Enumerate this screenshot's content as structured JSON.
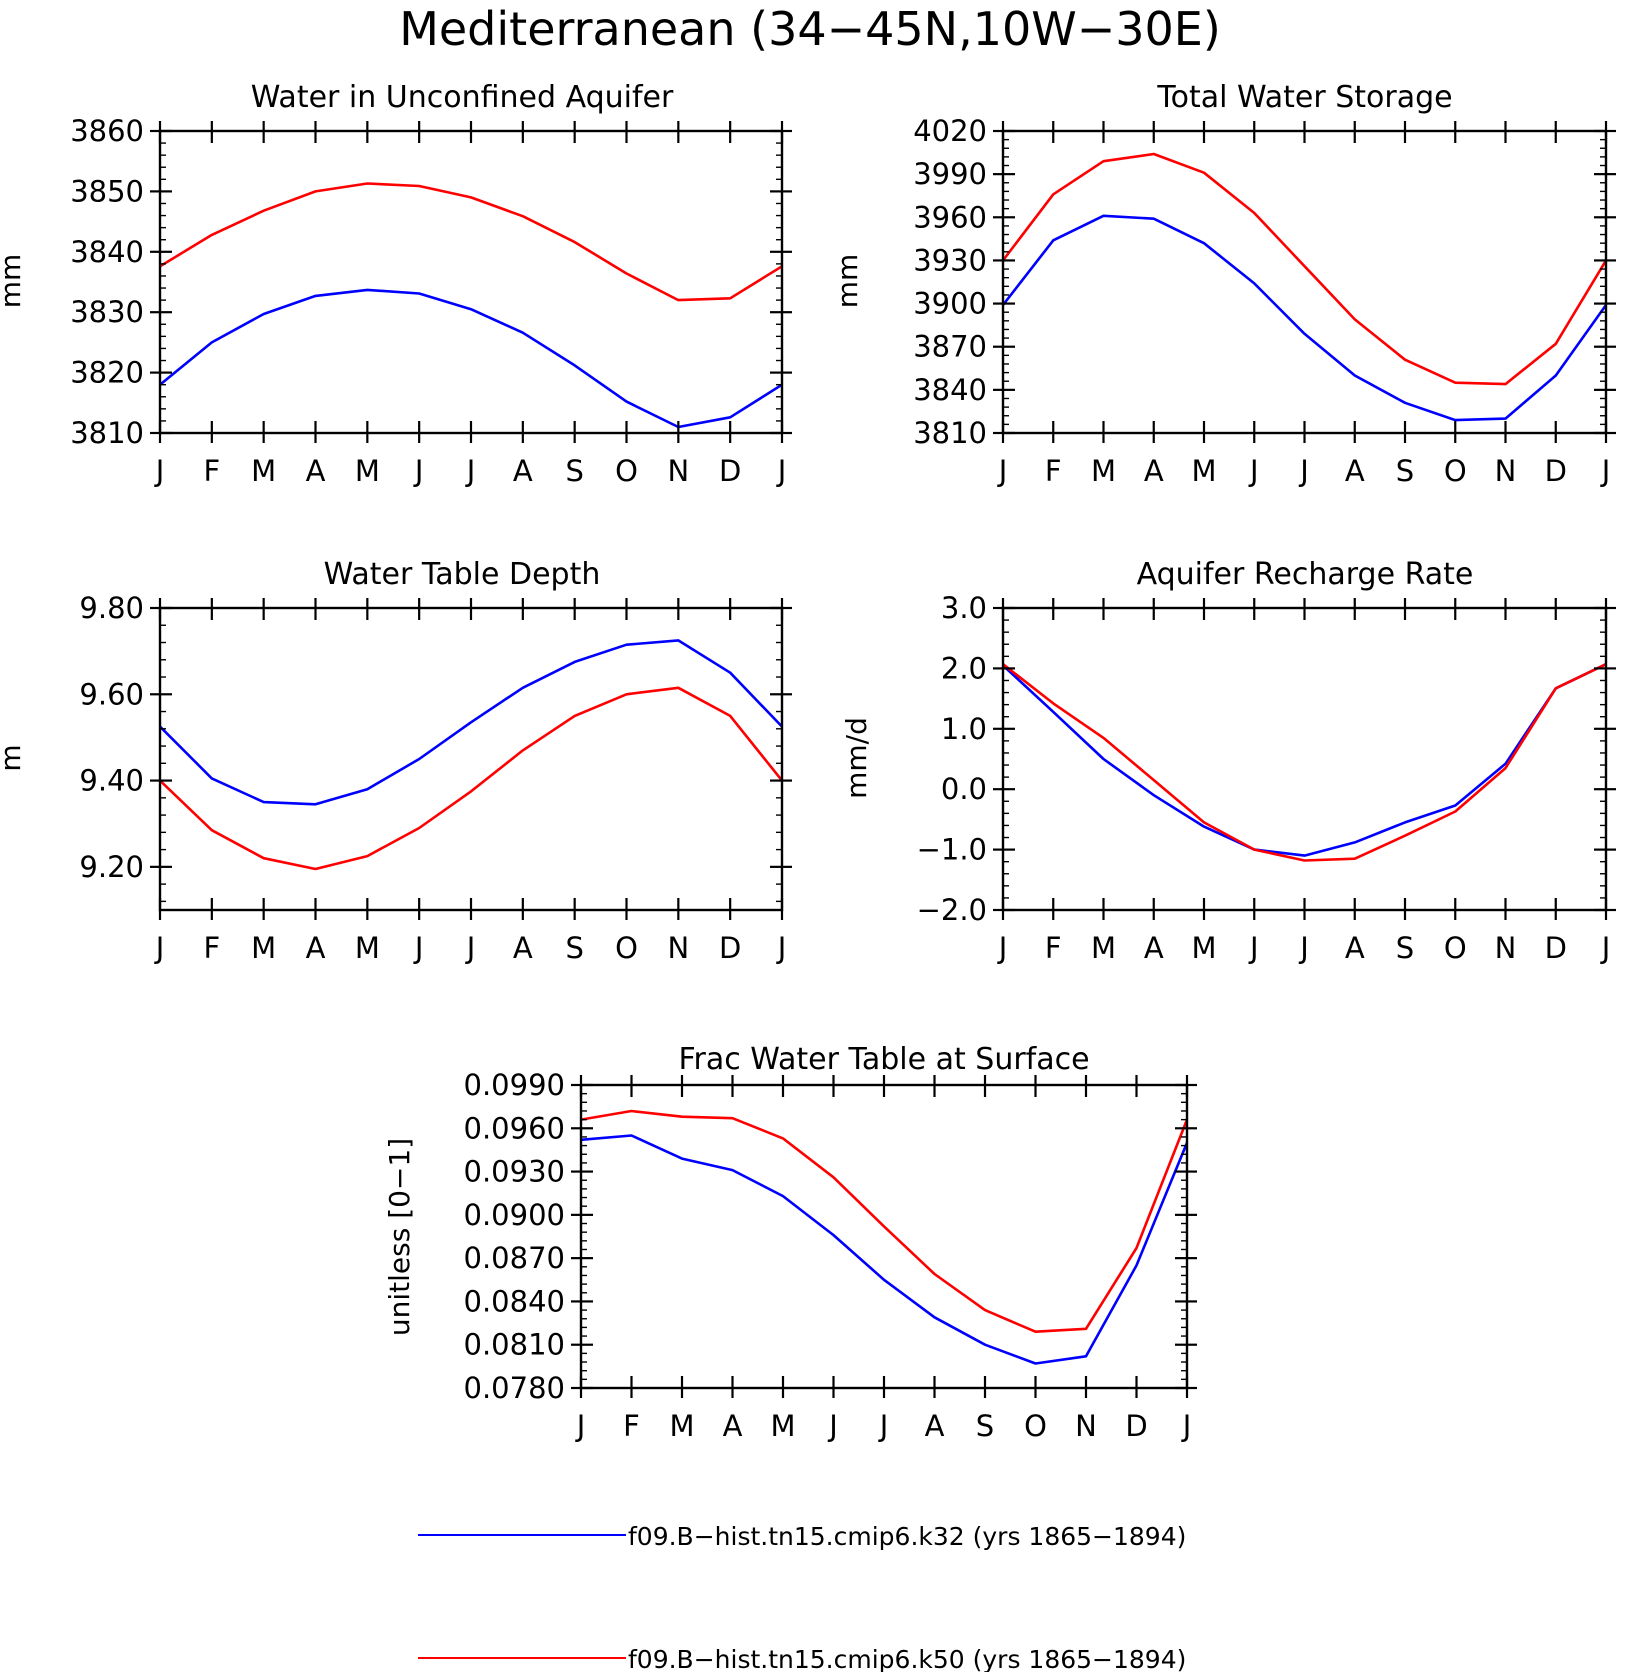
{
  "figure": {
    "title": "Mediterranean (34−45N,10W−30E)"
  },
  "colors": {
    "k32": "#0000ff",
    "k50": "#ff0000",
    "axis": "#000000"
  },
  "legend": {
    "placement": "bottom-center",
    "entries": [
      {
        "label": "f09.B−hist.tn15.cmip6.k32 (yrs 1865−1894)",
        "color": "#0000ff"
      },
      {
        "label": "f09.B−hist.tn15.cmip6.k50 (yrs 1865−1894)",
        "color": "#ff0000"
      }
    ]
  },
  "chart_data": [
    {
      "type": "line",
      "title": "Water in Unconfined Aquifer",
      "ylabel": "mm",
      "x": [
        "J",
        "F",
        "M",
        "A",
        "M",
        "J",
        "J",
        "A",
        "S",
        "O",
        "N",
        "D",
        "J"
      ],
      "ylim": [
        3810,
        3860
      ],
      "yticks": [
        3810,
        3820,
        3830,
        3840,
        3850,
        3860
      ],
      "ytick_labels": [
        "3810",
        "3820",
        "3830",
        "3840",
        "3850",
        "3860"
      ],
      "series": [
        {
          "name": "f09.B−hist.tn15.cmip6.k32 (yrs 1865−1894)",
          "color": "#0000ff",
          "values": [
            3818,
            3825,
            3829.7,
            3832.7,
            3833.7,
            3833.1,
            3830.5,
            3826.6,
            3821.2,
            3815.2,
            3811,
            3812.6,
            3818
          ]
        },
        {
          "name": "f09.B−hist.tn15.cmip6.k50 (yrs 1865−1894)",
          "color": "#ff0000",
          "values": [
            3837.6,
            3842.8,
            3846.8,
            3850,
            3851.3,
            3850.9,
            3849,
            3845.9,
            3841.6,
            3836.4,
            3832,
            3832.3,
            3837.6
          ]
        }
      ]
    },
    {
      "type": "line",
      "title": "Total Water Storage",
      "ylabel": "mm",
      "x": [
        "J",
        "F",
        "M",
        "A",
        "M",
        "J",
        "J",
        "A",
        "S",
        "O",
        "N",
        "D",
        "J"
      ],
      "ylim": [
        3810,
        4020
      ],
      "yticks": [
        3810,
        3840,
        3870,
        3900,
        3930,
        3960,
        3990,
        4020
      ],
      "ytick_labels": [
        "3810",
        "3840",
        "3870",
        "3900",
        "3930",
        "3960",
        "3990",
        "4020"
      ],
      "series": [
        {
          "name": "f09.B−hist.tn15.cmip6.k32 (yrs 1865−1894)",
          "color": "#0000ff",
          "values": [
            3899,
            3944,
            3961,
            3959,
            3942,
            3914,
            3879,
            3850,
            3831,
            3819,
            3820,
            3850,
            3899
          ]
        },
        {
          "name": "f09.B−hist.tn15.cmip6.k50 (yrs 1865−1894)",
          "color": "#ff0000",
          "values": [
            3930,
            3976,
            3999,
            4004,
            3991,
            3963,
            3926,
            3889,
            3861,
            3845,
            3844,
            3872,
            3930
          ]
        }
      ]
    },
    {
      "type": "line",
      "title": "Water Table Depth",
      "ylabel": "m",
      "x": [
        "J",
        "F",
        "M",
        "A",
        "M",
        "J",
        "J",
        "A",
        "S",
        "O",
        "N",
        "D",
        "J"
      ],
      "ylim": [
        9.1,
        9.8
      ],
      "yticks": [
        9.2,
        9.4,
        9.6,
        9.8
      ],
      "ytick_labels": [
        "9.20",
        "9.40",
        "9.60",
        "9.80"
      ],
      "series": [
        {
          "name": "f09.B−hist.tn15.cmip6.k32 (yrs 1865−1894)",
          "color": "#0000ff",
          "values": [
            9.525,
            9.405,
            9.35,
            9.345,
            9.38,
            9.45,
            9.535,
            9.615,
            9.675,
            9.715,
            9.725,
            9.65,
            9.525
          ]
        },
        {
          "name": "f09.B−hist.tn15.cmip6.k50 (yrs 1865−1894)",
          "color": "#ff0000",
          "values": [
            9.4,
            9.285,
            9.22,
            9.195,
            9.225,
            9.29,
            9.375,
            9.47,
            9.55,
            9.6,
            9.615,
            9.55,
            9.4
          ]
        }
      ]
    },
    {
      "type": "line",
      "title": "Aquifer Recharge Rate",
      "ylabel": "mm/d",
      "x": [
        "J",
        "F",
        "M",
        "A",
        "M",
        "J",
        "J",
        "A",
        "S",
        "O",
        "N",
        "D",
        "J"
      ],
      "ylim": [
        -2.0,
        3.0
      ],
      "yticks": [
        -2.0,
        -1.0,
        0.0,
        1.0,
        2.0,
        3.0
      ],
      "ytick_labels": [
        "−2.0",
        "−1.0",
        "0.0",
        "1.0",
        "2.0",
        "3.0"
      ],
      "series": [
        {
          "name": "f09.B−hist.tn15.cmip6.k32 (yrs 1865−1894)",
          "color": "#0000ff",
          "values": [
            2.05,
            1.28,
            0.5,
            -0.1,
            -0.62,
            -1.0,
            -1.1,
            -0.88,
            -0.55,
            -0.27,
            0.42,
            1.67,
            2.07
          ]
        },
        {
          "name": "f09.B−hist.tn15.cmip6.k50 (yrs 1865−1894)",
          "color": "#ff0000",
          "values": [
            2.07,
            1.42,
            0.85,
            0.15,
            -0.55,
            -1.0,
            -1.18,
            -1.15,
            -0.77,
            -0.37,
            0.35,
            1.67,
            2.07
          ]
        }
      ]
    },
    {
      "type": "line",
      "title": "Frac Water Table at Surface",
      "ylabel": "unitless [0−1]",
      "x": [
        "J",
        "F",
        "M",
        "A",
        "M",
        "J",
        "J",
        "A",
        "S",
        "O",
        "N",
        "D",
        "J"
      ],
      "ylim": [
        0.078,
        0.099
      ],
      "yticks": [
        0.078,
        0.081,
        0.084,
        0.087,
        0.09,
        0.093,
        0.096,
        0.099
      ],
      "ytick_labels": [
        "0.0780",
        "0.0810",
        "0.0840",
        "0.0870",
        "0.0900",
        "0.0930",
        "0.0960",
        "0.0990"
      ],
      "series": [
        {
          "name": "f09.B−hist.tn15.cmip6.k32 (yrs 1865−1894)",
          "color": "#0000ff",
          "values": [
            0.0952,
            0.0955,
            0.0939,
            0.0931,
            0.0913,
            0.0886,
            0.0855,
            0.0829,
            0.081,
            0.0797,
            0.0802,
            0.0865,
            0.095
          ]
        },
        {
          "name": "f09.B−hist.tn15.cmip6.k50 (yrs 1865−1894)",
          "color": "#ff0000",
          "values": [
            0.0966,
            0.0972,
            0.0968,
            0.0967,
            0.0953,
            0.0926,
            0.0892,
            0.0859,
            0.0834,
            0.0819,
            0.0821,
            0.0877,
            0.0966
          ]
        }
      ]
    }
  ]
}
